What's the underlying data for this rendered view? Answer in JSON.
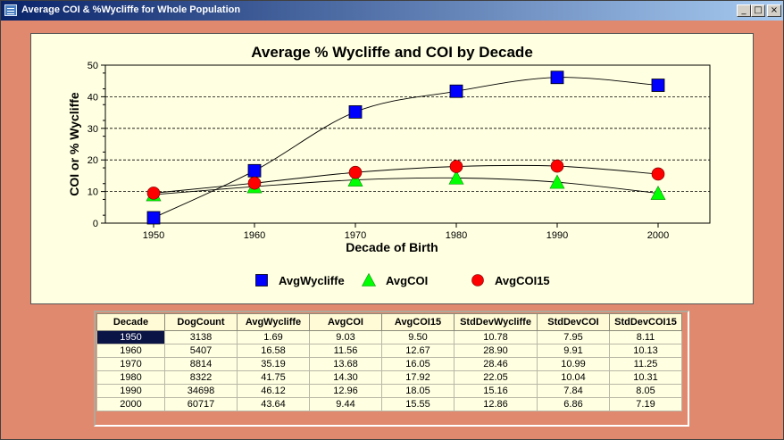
{
  "window": {
    "title": "Average COI & %Wycliffe for Whole Population",
    "buttons": {
      "minimize": "_",
      "maximize": "□",
      "close": "×"
    }
  },
  "chart_data": {
    "type": "line",
    "title": "Average % Wycliffe and COI by Decade",
    "xlabel": "Decade of Birth",
    "ylabel": "COI or % Wycliffe",
    "categories": [
      "1950",
      "1960",
      "1970",
      "1980",
      "1990",
      "2000"
    ],
    "ylim": [
      0,
      50
    ],
    "yticks": [
      0,
      10,
      20,
      30,
      40,
      50
    ],
    "grid": "horizontal dashed",
    "legend_position": "bottom",
    "series": [
      {
        "name": "AvgWycliffe",
        "marker": "square",
        "color": "#0000ff",
        "values": [
          1.69,
          16.58,
          35.19,
          41.75,
          46.12,
          43.64
        ]
      },
      {
        "name": "AvgCOI",
        "marker": "triangle",
        "color": "#00ff00",
        "values": [
          9.03,
          11.56,
          13.68,
          14.3,
          12.96,
          9.44
        ]
      },
      {
        "name": "AvgCOI15",
        "marker": "circle",
        "color": "#ff0000",
        "values": [
          9.5,
          12.67,
          16.05,
          17.92,
          18.05,
          15.55
        ]
      }
    ]
  },
  "table": {
    "columns": [
      "Decade",
      "DogCount",
      "AvgWycliffe",
      "AvgCOI",
      "AvgCOI15",
      "StdDevWycliffe",
      "StdDevCOI",
      "StdDevCOI15"
    ],
    "rows": [
      [
        "1950",
        "3138",
        "1.69",
        "9.03",
        "9.50",
        "10.78",
        "7.95",
        "8.11"
      ],
      [
        "1960",
        "5407",
        "16.58",
        "11.56",
        "12.67",
        "28.90",
        "9.91",
        "10.13"
      ],
      [
        "1970",
        "8814",
        "35.19",
        "13.68",
        "16.05",
        "28.46",
        "10.99",
        "11.25"
      ],
      [
        "1980",
        "8322",
        "41.75",
        "14.30",
        "17.92",
        "22.05",
        "10.04",
        "10.31"
      ],
      [
        "1990",
        "34698",
        "46.12",
        "12.96",
        "18.05",
        "15.16",
        "7.84",
        "8.05"
      ],
      [
        "2000",
        "60717",
        "43.64",
        "9.44",
        "15.55",
        "12.86",
        "6.86",
        "7.19"
      ]
    ]
  }
}
